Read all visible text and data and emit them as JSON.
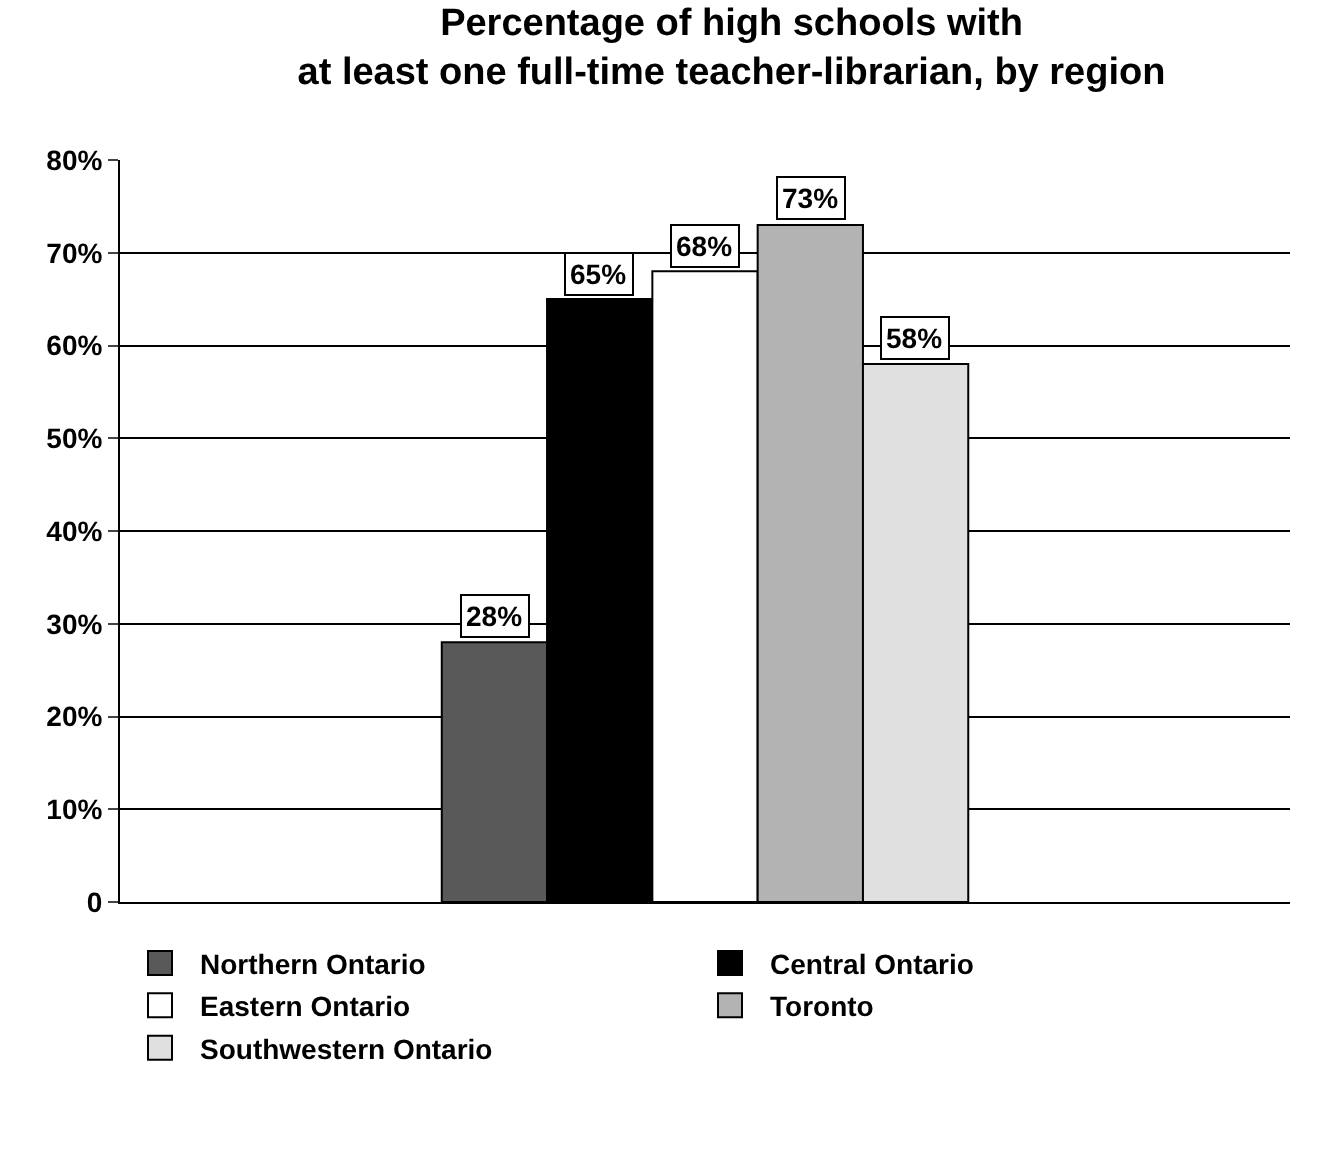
{
  "chart_data": {
    "type": "bar",
    "title": "Percentage of high schools with\nat least one full-time teacher-librarian, by region",
    "categories": [
      null
    ],
    "series": [
      {
        "name": "Northern Ontario",
        "color": "#595959",
        "values": [
          28
        ],
        "value_labels": [
          "28%"
        ]
      },
      {
        "name": "Central Ontario",
        "color": "#000000",
        "values": [
          65
        ],
        "value_labels": [
          "65%"
        ]
      },
      {
        "name": "Eastern Ontario",
        "color": "#ffffff",
        "values": [
          68
        ],
        "value_labels": [
          "68%"
        ]
      },
      {
        "name": "Toronto",
        "color": "#b3b3b3",
        "values": [
          73
        ],
        "value_labels": [
          "73%"
        ]
      },
      {
        "name": "Southwestern Ontario",
        "color": "#e0e0e0",
        "values": [
          58
        ],
        "value_labels": [
          "58%"
        ]
      }
    ],
    "ylim": [
      0,
      80
    ],
    "yticks": [
      0,
      {
        "value": 10,
        "label": "10%"
      },
      {
        "value": 20,
        "label": "20%"
      },
      {
        "value": 30,
        "label": "30%"
      },
      {
        "value": 40,
        "label": "40%"
      },
      {
        "value": 50,
        "label": "50%"
      },
      {
        "value": 60,
        "label": "60%"
      },
      {
        "value": 70,
        "label": "70%"
      },
      {
        "value": 80,
        "label": "80%"
      }
    ],
    "grid": "y",
    "legend": "bottom"
  }
}
